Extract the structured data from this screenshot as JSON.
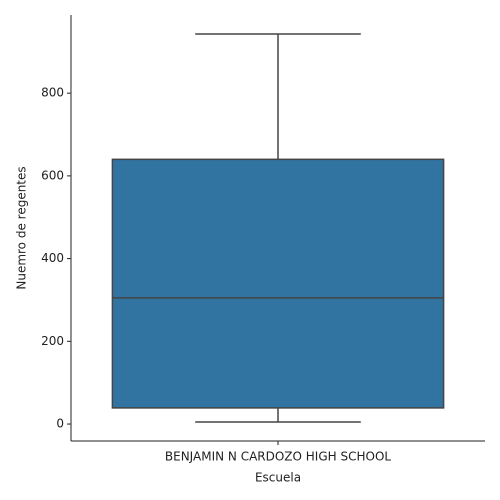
{
  "chart_data": {
    "type": "box",
    "xlabel": "Escuela",
    "ylabel": "Nuemro de regentes",
    "categories": [
      "BENJAMIN N CARDOZO HIGH SCHOOL"
    ],
    "boxes": [
      {
        "whislo": 5,
        "q1": 39,
        "median": 305,
        "q3": 640,
        "whishi": 943
      }
    ],
    "color": "#3274a1",
    "line_color": "#444444",
    "ylim": [
      -41,
      989
    ],
    "yticks": [
      0,
      200,
      400,
      600,
      800
    ],
    "grid": false
  }
}
